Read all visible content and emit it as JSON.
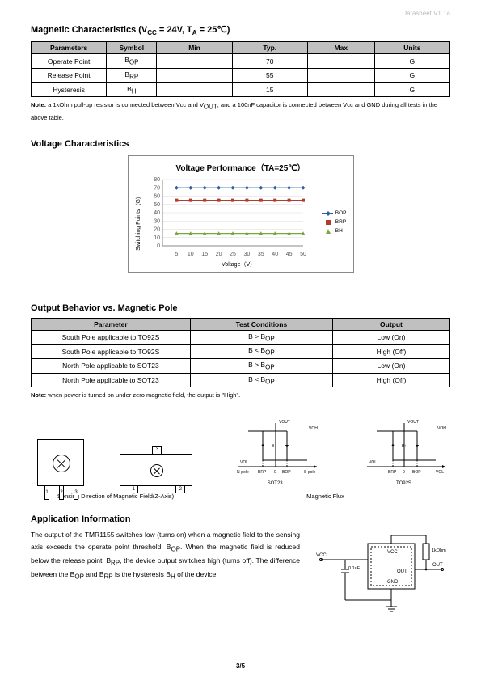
{
  "header": {
    "doc_label": "Datasheet   V1.1a"
  },
  "mag_char": {
    "title_prefix": "Magnetic Characteristics (V",
    "title_cc": "CC",
    "title_mid": " = 24V, T",
    "title_a": "A",
    "title_suffix": " = 25℃)",
    "columns": [
      "Parameters",
      "Symbol",
      "Min",
      "Typ.",
      "Max",
      "Units"
    ],
    "col_widths": [
      "18%",
      "12%",
      "18%",
      "18%",
      "16%",
      "18%"
    ],
    "rows": [
      {
        "param": "Operate Point",
        "sym": "B",
        "sym_sub": "OP",
        "min": "",
        "typ": "70",
        "max": "",
        "units": "G"
      },
      {
        "param": "Release Point",
        "sym": "B",
        "sym_sub": "RP",
        "min": "",
        "typ": "55",
        "max": "",
        "units": "G"
      },
      {
        "param": "Hysteresis",
        "sym": "B",
        "sym_sub": "H",
        "min": "",
        "typ": "15",
        "max": "",
        "units": "G"
      }
    ],
    "note_prefix": "Note: ",
    "note_body": "a 1kOhm pull-up resistor is connected between Vcc and V",
    "note_out": "OUT",
    "note_body2": ", and a 100nF capacitor is connected between Vcc and GND during all tests in the above table."
  },
  "volt_char": {
    "heading": "Voltage Characteristics",
    "chart": {
      "title": "Voltage Performance（TA=25℃）",
      "ylabel": "Switching Points（G）",
      "xlabel": "Voltage（V）",
      "ylim": [
        0,
        80
      ],
      "ytick_step": 10,
      "xlim": [
        0,
        50
      ],
      "xtick_step": 5,
      "x_start": 5,
      "series": [
        {
          "name": "BOP",
          "color": "#2e5fa0",
          "marker": "diamond",
          "y": 70
        },
        {
          "name": "BRP",
          "color": "#b23a2e",
          "marker": "square",
          "y": 55
        },
        {
          "name": "BH",
          "color": "#7aa640",
          "marker": "triangle",
          "y": 15
        }
      ],
      "x_values": [
        5,
        10,
        15,
        20,
        25,
        30,
        35,
        40,
        45,
        50
      ],
      "background": "#ffffff",
      "grid_color": "#d8d8d8",
      "axis_color": "#888888",
      "font_size": 7
    }
  },
  "output_behavior": {
    "heading": "Output Behavior vs. Magnetic Pole",
    "columns": [
      "Parameter",
      "Test Conditions",
      "Output"
    ],
    "col_widths": [
      "38%",
      "34%",
      "28%"
    ],
    "rows": [
      {
        "param": "South Pole applicable to TO92S",
        "cond_pre": "B > B",
        "cond_sub": "OP",
        "out": "Low (On)"
      },
      {
        "param": "South Pole applicable to TO92S",
        "cond_pre": "B < B",
        "cond_sub": "OP",
        "out": "High (Off)"
      },
      {
        "param": "North Pole applicable to SOT23",
        "cond_pre": "B > B",
        "cond_sub": "OP",
        "out": "Low (On)"
      },
      {
        "param": "North Pole applicable to SOT23",
        "cond_pre": "B < B",
        "cond_sub": "OP",
        "out": "High (Off)"
      }
    ],
    "note_prefix": "Note: ",
    "note_body": "when power is turned on under zero magnetic field, the output is \"High\"."
  },
  "diagrams": {
    "pkg_caption": "Sensing Direction of Magnetic Field(Z-Axis)",
    "flux_caption": "Magnetic Flux",
    "to92_pins": [
      "1",
      "2",
      "3"
    ],
    "sot23_pins": [
      "1",
      "2",
      "3"
    ],
    "flux_labels": {
      "vout": "VOUT",
      "voh": "VOH",
      "vol": "VOL",
      "bplus": "B+",
      "npole": "N-pole",
      "spole": "S-pole",
      "brp": "BRP",
      "bop": "BOP",
      "zero": "0",
      "sot_label": "SOT23",
      "to92_label": "TO92S"
    }
  },
  "app": {
    "heading": "Application Information",
    "text_1": "The output of the TMR1155 switches low (turns on) when a magnetic field to the sensing axis exceeds the operate point threshold, B",
    "text_1_sub": "OP",
    "text_2": ". When the magnetic field is reduced below the release point, B",
    "text_2_sub": "RP",
    "text_3": ", the device output switches high (turns off). The difference between the B",
    "text_3_sub": "OP",
    "text_4": " and B",
    "text_4_sub": "RP",
    "text_5": " is the hysteresis B",
    "text_5_sub": "H",
    "text_6": " of the device.",
    "circuit": {
      "vcc": "VCC",
      "out": "OUT",
      "gnd": "GND",
      "res": "1kOhm",
      "cap": "0.1uF",
      "vcc_left": "VCC"
    }
  },
  "page_number": "3/5"
}
